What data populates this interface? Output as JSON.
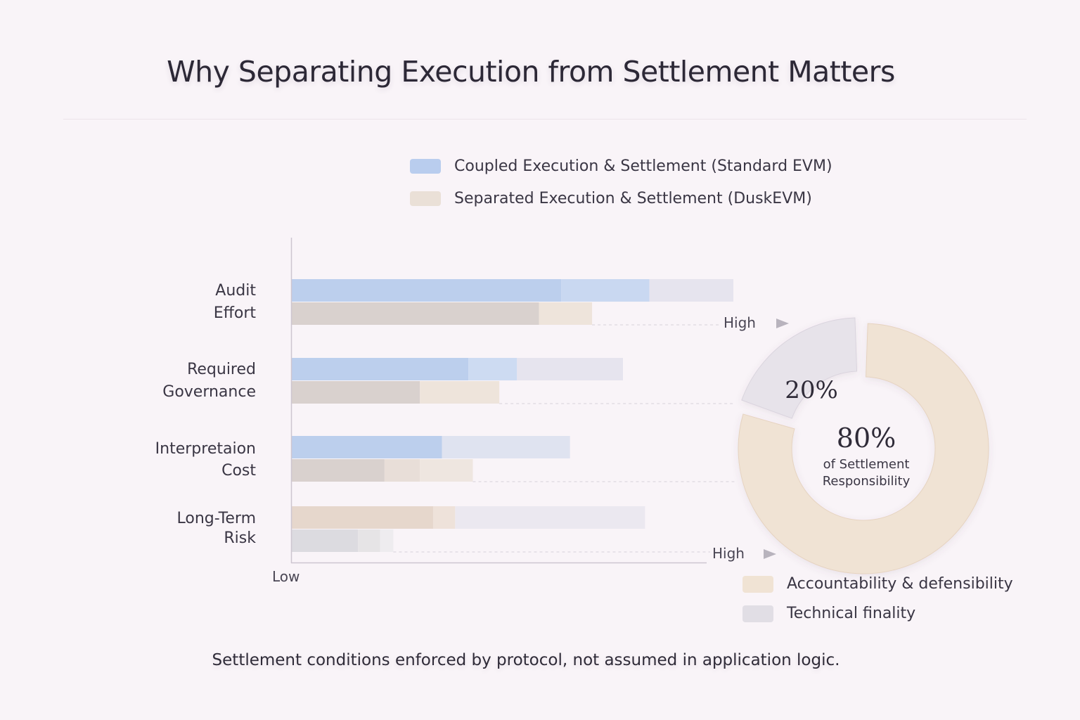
{
  "title": "Why Separating Execution from Settlement Matters",
  "footnote": "Settlement conditions enforced by protocol, not assumed in application logic.",
  "legend": {
    "coupled": {
      "label": "Coupled Execution & Settlement (Standard EVM)",
      "color": "#b9cdee"
    },
    "separated": {
      "label": "Separated Execution & Settlement (DuskEVM)",
      "color": "#eae0d7"
    }
  },
  "donut_legend": {
    "accountability": {
      "label": "Accountability & defensibility",
      "color": "#f0e3d4"
    },
    "technical": {
      "label": "Technical finality",
      "color": "#e1dee5"
    }
  },
  "chart_data": [
    {
      "type": "bar",
      "orientation": "horizontal",
      "categories": [
        "Audit Effort",
        "Required Governance",
        "Interpretaion Cost",
        "Long-Term Risk"
      ],
      "category_lines": [
        [
          "Audit",
          "Effort"
        ],
        [
          "Required",
          "Governance"
        ],
        [
          "Interpretaion",
          "Cost"
        ],
        [
          "Long-Term",
          "Risk"
        ]
      ],
      "axis_low_label": "Low",
      "axis_high_label": "High",
      "xlim": [
        0,
        1
      ],
      "series": [
        {
          "name": "Coupled Execution & Settlement (Standard EVM)",
          "segments": [
            [
              0.61,
              0.81,
              1.0
            ],
            [
              0.4,
              0.51,
              0.75
            ],
            [
              0.34,
              0.63
            ],
            [
              0.32,
              0.37,
              0.8
            ]
          ],
          "colors": [
            [
              "#bccfed",
              "#c9d8f1",
              "#e6e4ee"
            ],
            [
              "#bccfed",
              "#cddbf2",
              "#e6e4ee"
            ],
            [
              "#bccfed",
              "#dfe3f0"
            ],
            [
              "#e6d7cc",
              "#eee2da",
              "#ebe8f0"
            ]
          ]
        },
        {
          "name": "Separated Execution & Settlement (DuskEVM)",
          "segments": [
            [
              0.56,
              0.68
            ],
            [
              0.29,
              0.47
            ],
            [
              0.21,
              0.29,
              0.41
            ],
            [
              0.15,
              0.2,
              0.23
            ]
          ],
          "colors": [
            [
              "#d9d1ce",
              "#eee4db"
            ],
            [
              "#d9d1ce",
              "#eee4db"
            ],
            [
              "#d9d1ce",
              "#e8ded8",
              "#eee6e0"
            ],
            [
              "#dcdbe0",
              "#e6e4e6",
              "#eeecef"
            ]
          ]
        }
      ]
    },
    {
      "type": "pie",
      "style": "donut",
      "slices": [
        {
          "label": "Accountability & defensibility",
          "value": 80,
          "color": "#f0e3d4"
        },
        {
          "label": "Technical finality",
          "value": 20,
          "color": "#e7e3ea"
        }
      ],
      "center_value": "80%",
      "center_caption": [
        "of Settlement",
        "Responsibility"
      ],
      "small_value": "20%"
    }
  ]
}
